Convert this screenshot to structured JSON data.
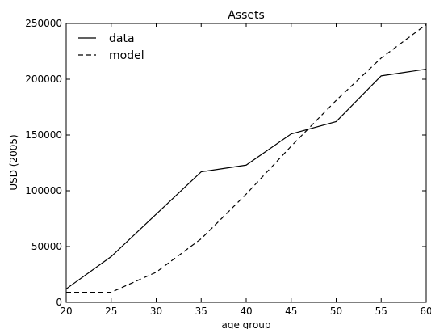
{
  "chart_data": {
    "type": "line",
    "title": "Assets",
    "xlabel": "age group",
    "ylabel": "USD (2005)",
    "x": [
      20,
      25,
      30,
      35,
      40,
      45,
      50,
      55,
      60
    ],
    "xlim": [
      20,
      60
    ],
    "ylim": [
      0,
      250000
    ],
    "xticks": [
      20,
      25,
      30,
      35,
      40,
      45,
      50,
      55,
      60
    ],
    "yticks": [
      0,
      50000,
      100000,
      150000,
      200000,
      250000
    ],
    "grid": false,
    "legend_position": "top-left",
    "series": [
      {
        "name": "data",
        "style": "solid",
        "color": "#000000",
        "values": [
          12000,
          41000,
          79000,
          117000,
          123000,
          151000,
          162000,
          203000,
          209000
        ]
      },
      {
        "name": "model",
        "style": "dashed",
        "color": "#000000",
        "values": [
          9000,
          9000,
          27000,
          57000,
          97000,
          140000,
          181000,
          219000,
          249000
        ]
      }
    ]
  }
}
